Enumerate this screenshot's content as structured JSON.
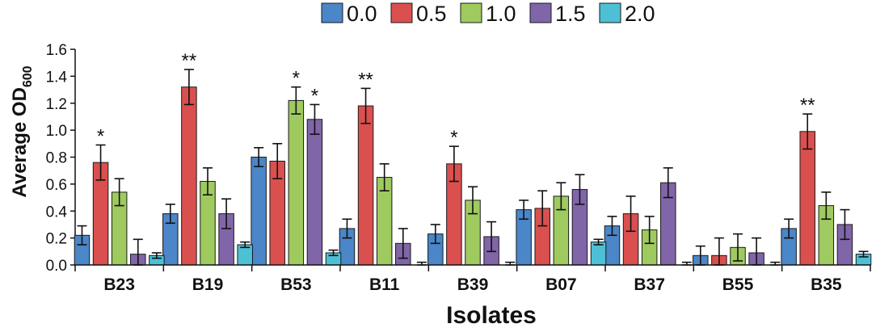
{
  "chart_data": {
    "type": "bar",
    "title": "",
    "xlabel": "Isolates",
    "ylabel": "Average OD",
    "ylabel_subscript": "600",
    "ylim": [
      0,
      1.6
    ],
    "yticks": [
      "0.0",
      "0.2",
      "0.4",
      "0.6",
      "0.8",
      "1.0",
      "1.2",
      "1.4",
      "1.6"
    ],
    "categories": [
      "B23",
      "B19",
      "B53",
      "B11",
      "B39",
      "B07",
      "B37",
      "B55",
      "B35"
    ],
    "legend_position": "top-center",
    "series": [
      {
        "name": "0.0",
        "color": "#4a86c8",
        "values": [
          0.22,
          0.38,
          0.8,
          0.27,
          0.23,
          0.41,
          0.29,
          0.07,
          0.27
        ],
        "errors": [
          0.07,
          0.07,
          0.07,
          0.07,
          0.07,
          0.07,
          0.07,
          0.07,
          0.07
        ]
      },
      {
        "name": "0.5",
        "color": "#d9504f",
        "values": [
          0.76,
          1.32,
          0.77,
          1.18,
          0.75,
          0.42,
          0.38,
          0.07,
          0.99
        ],
        "errors": [
          0.13,
          0.13,
          0.13,
          0.13,
          0.13,
          0.13,
          0.13,
          0.13,
          0.13
        ]
      },
      {
        "name": "1.0",
        "color": "#9fca5f",
        "values": [
          0.54,
          0.62,
          1.22,
          0.65,
          0.48,
          0.51,
          0.26,
          0.13,
          0.44
        ],
        "errors": [
          0.1,
          0.1,
          0.1,
          0.1,
          0.1,
          0.1,
          0.1,
          0.1,
          0.1
        ]
      },
      {
        "name": "1.5",
        "color": "#8065a8",
        "values": [
          0.08,
          0.38,
          1.08,
          0.16,
          0.21,
          0.56,
          0.61,
          0.09,
          0.3
        ],
        "errors": [
          0.11,
          0.11,
          0.11,
          0.11,
          0.11,
          0.11,
          0.11,
          0.11,
          0.11
        ]
      },
      {
        "name": "2.0",
        "color": "#4ec0d6",
        "values": [
          0.07,
          0.15,
          0.09,
          0.0,
          0.0,
          0.17,
          0.0,
          0.0,
          0.08
        ],
        "errors": [
          0.02,
          0.02,
          0.02,
          0.02,
          0.02,
          0.02,
          0.02,
          0.02,
          0.02
        ]
      }
    ],
    "annotations": [
      {
        "category": "B23",
        "series": "0.5",
        "text": "*"
      },
      {
        "category": "B19",
        "series": "0.5",
        "text": "**"
      },
      {
        "category": "B53",
        "series": "1.0",
        "text": "*"
      },
      {
        "category": "B53",
        "series": "1.5",
        "text": "*"
      },
      {
        "category": "B11",
        "series": "0.5",
        "text": "**"
      },
      {
        "category": "B39",
        "series": "0.5",
        "text": "*"
      },
      {
        "category": "B35",
        "series": "0.5",
        "text": "**"
      }
    ]
  }
}
